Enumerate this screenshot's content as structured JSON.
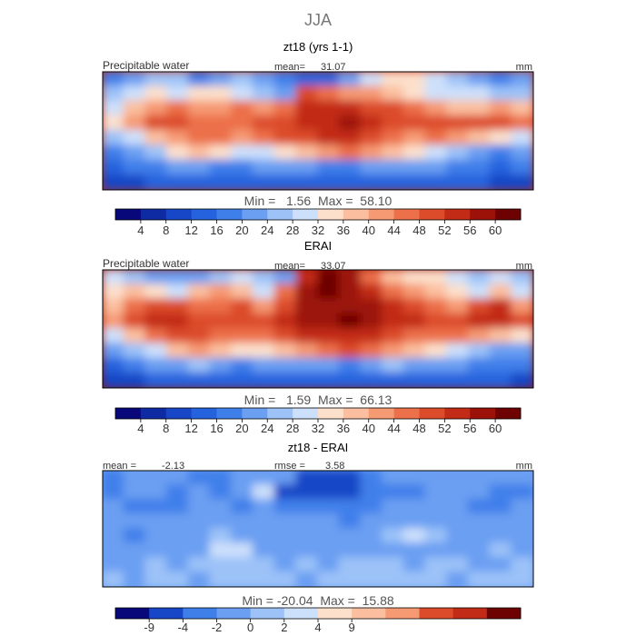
{
  "page_title": "JJA",
  "chart_data": [
    {
      "type": "heatmap",
      "title": "zt18 (yrs 1-1)",
      "field_label": "Precipitable water",
      "units": "mm",
      "mean_label": "mean=",
      "mean_value": "31.07",
      "stats_label": "Min =   1.56  Max =  58.10",
      "min": 1.56,
      "max": 58.1,
      "colorbar": {
        "ticks": [
          "4",
          "8",
          "12",
          "16",
          "20",
          "24",
          "28",
          "32",
          "36",
          "40",
          "44",
          "48",
          "52",
          "56",
          "60"
        ],
        "colors": [
          "#08087a",
          "#0f2ba3",
          "#1747c6",
          "#2563de",
          "#3f7fea",
          "#6a9ff2",
          "#9cc2f8",
          "#cde0fb",
          "#fce0cc",
          "#fbbf9f",
          "#f69a73",
          "#ec7049",
          "#dc4b2a",
          "#c22b15",
          "#9c1208",
          "#6e0202"
        ]
      },
      "map_field": [
        [
          16,
          20,
          24,
          24,
          16,
          20,
          24,
          20,
          16,
          12,
          12,
          20,
          28,
          32,
          32,
          28,
          24,
          20,
          16,
          20
        ],
        [
          24,
          28,
          32,
          28,
          32,
          32,
          28,
          24,
          20,
          48,
          44,
          40,
          40,
          36,
          32,
          28,
          28,
          28,
          24,
          24
        ],
        [
          28,
          36,
          40,
          44,
          40,
          40,
          44,
          40,
          44,
          52,
          52,
          52,
          50,
          48,
          44,
          40,
          36,
          36,
          40,
          36
        ],
        [
          32,
          40,
          48,
          48,
          44,
          44,
          44,
          48,
          50,
          52,
          54,
          56,
          54,
          50,
          50,
          48,
          48,
          48,
          48,
          44
        ],
        [
          24,
          28,
          36,
          40,
          44,
          44,
          40,
          44,
          48,
          48,
          52,
          52,
          50,
          44,
          40,
          44,
          40,
          36,
          32,
          28
        ],
        [
          16,
          20,
          24,
          32,
          36,
          32,
          28,
          28,
          32,
          36,
          40,
          44,
          40,
          36,
          32,
          28,
          24,
          20,
          16,
          20
        ],
        [
          12,
          16,
          16,
          20,
          20,
          16,
          16,
          20,
          20,
          20,
          16,
          16,
          20,
          20,
          20,
          20,
          16,
          16,
          12,
          16
        ],
        [
          8,
          8,
          12,
          12,
          12,
          12,
          12,
          12,
          12,
          12,
          12,
          12,
          12,
          12,
          12,
          12,
          12,
          12,
          8,
          8
        ]
      ]
    },
    {
      "type": "heatmap",
      "title": "ERAI",
      "field_label": "Precipitable water",
      "units": "mm",
      "mean_label": "mean=",
      "mean_value": "33.07",
      "stats_label": "Min =   1.59  Max =  66.13",
      "min": 1.59,
      "max": 66.13,
      "colorbar": {
        "ticks": [
          "4",
          "8",
          "12",
          "16",
          "20",
          "24",
          "28",
          "32",
          "36",
          "40",
          "44",
          "48",
          "52",
          "56",
          "60"
        ],
        "colors": [
          "#08087a",
          "#0f2ba3",
          "#1747c6",
          "#2563de",
          "#3f7fea",
          "#6a9ff2",
          "#9cc2f8",
          "#cde0fb",
          "#fce0cc",
          "#fbbf9f",
          "#f69a73",
          "#ec7049",
          "#dc4b2a",
          "#c22b15",
          "#9c1208",
          "#6e0202"
        ]
      },
      "map_field": [
        [
          28,
          24,
          20,
          20,
          20,
          24,
          28,
          24,
          20,
          52,
          60,
          56,
          44,
          36,
          32,
          32,
          28,
          24,
          28,
          24
        ],
        [
          32,
          36,
          32,
          28,
          36,
          40,
          36,
          28,
          44,
          56,
          60,
          56,
          52,
          44,
          40,
          36,
          32,
          28,
          36,
          28
        ],
        [
          36,
          44,
          48,
          48,
          44,
          44,
          48,
          40,
          48,
          56,
          56,
          56,
          56,
          52,
          48,
          44,
          40,
          48,
          52,
          40
        ],
        [
          40,
          48,
          52,
          52,
          48,
          48,
          48,
          48,
          52,
          56,
          58,
          60,
          58,
          54,
          52,
          50,
          50,
          52,
          52,
          48
        ],
        [
          28,
          36,
          44,
          48,
          48,
          44,
          44,
          44,
          48,
          52,
          52,
          54,
          52,
          48,
          44,
          44,
          44,
          40,
          36,
          32
        ],
        [
          20,
          24,
          28,
          36,
          40,
          36,
          32,
          32,
          36,
          40,
          44,
          48,
          44,
          40,
          36,
          32,
          28,
          24,
          20,
          20
        ],
        [
          12,
          16,
          20,
          20,
          24,
          20,
          16,
          20,
          20,
          20,
          20,
          16,
          20,
          24,
          20,
          20,
          20,
          16,
          16,
          16
        ],
        [
          8,
          8,
          12,
          12,
          12,
          12,
          12,
          12,
          12,
          12,
          12,
          12,
          12,
          12,
          12,
          12,
          12,
          12,
          12,
          8
        ]
      ]
    },
    {
      "type": "heatmap",
      "title": "zt18 - ERAI",
      "units": "mm",
      "mean_label": "mean =",
      "mean_value": "-2.13",
      "rmse_label": "rmse =",
      "rmse_value": "3.58",
      "stats_label": "Min = -20.04  Max =  15.88",
      "min": -20.04,
      "max": 15.88,
      "colorbar": {
        "ticks": [
          "-9",
          "-4",
          "-2",
          "0",
          "2",
          "4",
          "9"
        ],
        "colors": [
          "#08087a",
          "#1747c6",
          "#3f7fea",
          "#6a9ff2",
          "#9cc2f8",
          "#cde0fb",
          "#fce0cc",
          "#fbbf9f",
          "#f69a73",
          "#dc4b2a",
          "#c22b15",
          "#6e0202"
        ]
      },
      "map_field": [
        [
          -3,
          -2,
          -2,
          -1,
          -3,
          -3,
          -2,
          -1,
          -2,
          -6,
          -9,
          -8,
          -4,
          -2,
          -2,
          -1,
          -1,
          -1,
          -2,
          -2
        ],
        [
          -3,
          -2,
          -1,
          -3,
          -2,
          -4,
          -2,
          3,
          -5,
          -7,
          -8,
          -6,
          -4,
          -3,
          -3,
          -2,
          -1,
          -2,
          -4,
          -3
        ],
        [
          -2,
          -3,
          -3,
          -3,
          -2,
          -2,
          -3,
          -2,
          -3,
          -4,
          -4,
          -3,
          -3,
          -2,
          -2,
          -1,
          -2,
          -3,
          -3,
          -2
        ],
        [
          -1,
          -2,
          -2,
          -2,
          -2,
          -2,
          -2,
          -2,
          -1,
          -2,
          -2,
          -3,
          -2,
          -1,
          -1,
          -2,
          -2,
          -1,
          -1,
          -1
        ],
        [
          -2,
          -3,
          -2,
          -2,
          -1,
          1,
          -1,
          -2,
          -1,
          -2,
          -2,
          -1,
          -1,
          1,
          2,
          1,
          -1,
          -1,
          -1,
          -1
        ],
        [
          -1,
          -2,
          -1,
          -2,
          -1,
          2,
          2,
          -1,
          -2,
          -1,
          -1,
          -2,
          -1,
          -2,
          -1,
          -1,
          -1,
          -1,
          0,
          -1
        ],
        [
          -1,
          -1,
          0,
          -1,
          0,
          1,
          1,
          0,
          -1,
          0,
          -1,
          0,
          1,
          0,
          -1,
          0,
          0,
          -1,
          -1,
          0
        ],
        [
          0,
          -1,
          0,
          0,
          -1,
          0,
          0,
          0,
          0,
          -1,
          0,
          0,
          0,
          0,
          0,
          0,
          -1,
          0,
          0,
          0
        ]
      ]
    }
  ]
}
